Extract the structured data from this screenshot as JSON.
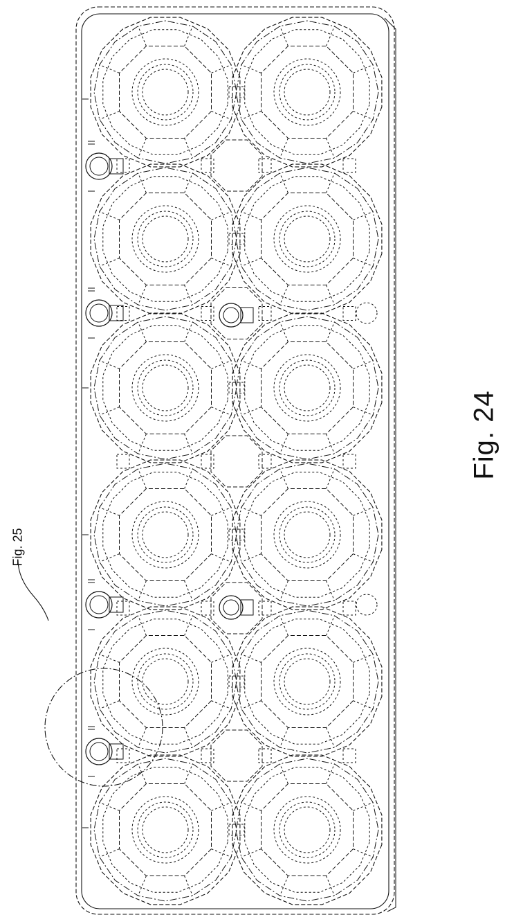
{
  "figure": {
    "title": "Fig. 24",
    "detail_callout": "Fig. 25"
  },
  "tray": {
    "cups_per_column": 6,
    "columns": 2,
    "line_color": "#111111",
    "background": "#ffffff"
  }
}
